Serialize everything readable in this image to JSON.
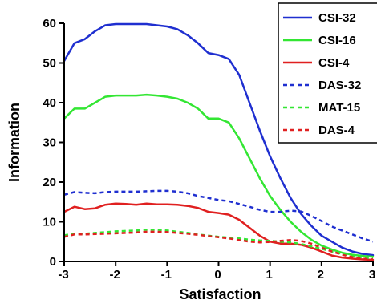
{
  "chart_data": {
    "type": "line",
    "title": "",
    "xlabel": "Satisfaction",
    "ylabel": "Information",
    "xlim": [
      -3,
      3
    ],
    "ylim": [
      0,
      60
    ],
    "xticks": [
      "-3",
      "-2",
      "-1",
      "0",
      "1",
      "2",
      "3"
    ],
    "yticks": [
      "0",
      "10",
      "20",
      "30",
      "40",
      "50",
      "60"
    ],
    "grid": false,
    "legend_position": "top-right",
    "series": [
      {
        "name": "CSI-32",
        "color": "#1f2fd0",
        "dash": "solid",
        "points": [
          [
            -3,
            50.5
          ],
          [
            -2.8,
            55
          ],
          [
            -2.6,
            56
          ],
          [
            -2.4,
            58
          ],
          [
            -2.2,
            59.5
          ],
          [
            -2,
            59.8
          ],
          [
            -1.8,
            59.8
          ],
          [
            -1.6,
            59.8
          ],
          [
            -1.4,
            59.8
          ],
          [
            -1.2,
            59.5
          ],
          [
            -1,
            59.2
          ],
          [
            -0.8,
            58.5
          ],
          [
            -0.6,
            57
          ],
          [
            -0.4,
            55
          ],
          [
            -0.2,
            52.5
          ],
          [
            0,
            52
          ],
          [
            0.2,
            51
          ],
          [
            0.4,
            47
          ],
          [
            0.6,
            40
          ],
          [
            0.8,
            33
          ],
          [
            1,
            26.5
          ],
          [
            1.2,
            21
          ],
          [
            1.4,
            16
          ],
          [
            1.6,
            12
          ],
          [
            1.8,
            9
          ],
          [
            2,
            6.5
          ],
          [
            2.2,
            5
          ],
          [
            2.4,
            3.5
          ],
          [
            2.6,
            2.5
          ],
          [
            2.8,
            1.9
          ],
          [
            3,
            1.6
          ]
        ]
      },
      {
        "name": "CSI-16",
        "color": "#33e633",
        "dash": "solid",
        "points": [
          [
            -3,
            36
          ],
          [
            -2.8,
            38.5
          ],
          [
            -2.6,
            38.5
          ],
          [
            -2.4,
            40
          ],
          [
            -2.2,
            41.5
          ],
          [
            -2,
            41.8
          ],
          [
            -1.8,
            41.8
          ],
          [
            -1.6,
            41.8
          ],
          [
            -1.4,
            42
          ],
          [
            -1.2,
            41.8
          ],
          [
            -1,
            41.5
          ],
          [
            -0.8,
            41
          ],
          [
            -0.6,
            40
          ],
          [
            -0.4,
            38.5
          ],
          [
            -0.2,
            36
          ],
          [
            0,
            36
          ],
          [
            0.2,
            35
          ],
          [
            0.4,
            31
          ],
          [
            0.6,
            26
          ],
          [
            0.8,
            21
          ],
          [
            1,
            16.5
          ],
          [
            1.2,
            13
          ],
          [
            1.4,
            10
          ],
          [
            1.6,
            7.5
          ],
          [
            1.8,
            5.5
          ],
          [
            2,
            4
          ],
          [
            2.2,
            3
          ],
          [
            2.4,
            2.2
          ],
          [
            2.6,
            1.7
          ],
          [
            2.8,
            1.4
          ],
          [
            3,
            1.2
          ]
        ]
      },
      {
        "name": "CSI-4",
        "color": "#e02020",
        "dash": "solid",
        "points": [
          [
            -3,
            12.5
          ],
          [
            -2.8,
            13.8
          ],
          [
            -2.6,
            13.2
          ],
          [
            -2.4,
            13.4
          ],
          [
            -2.2,
            14.3
          ],
          [
            -2,
            14.6
          ],
          [
            -1.8,
            14.5
          ],
          [
            -1.6,
            14.3
          ],
          [
            -1.4,
            14.6
          ],
          [
            -1.2,
            14.4
          ],
          [
            -1,
            14.4
          ],
          [
            -0.8,
            14.3
          ],
          [
            -0.6,
            14
          ],
          [
            -0.4,
            13.5
          ],
          [
            -0.2,
            12.5
          ],
          [
            0,
            12.2
          ],
          [
            0.2,
            11.8
          ],
          [
            0.4,
            10.5
          ],
          [
            0.6,
            8.5
          ],
          [
            0.8,
            6.5
          ],
          [
            1,
            5
          ],
          [
            1.2,
            4.5
          ],
          [
            1.4,
            4.5
          ],
          [
            1.6,
            4.2
          ],
          [
            1.8,
            3.5
          ],
          [
            2,
            2.5
          ],
          [
            2.2,
            1.5
          ],
          [
            2.4,
            1
          ],
          [
            2.6,
            0.7
          ],
          [
            2.8,
            0.5
          ],
          [
            3,
            0.4
          ]
        ]
      },
      {
        "name": "DAS-32",
        "color": "#1f2fd0",
        "dash": "dashed",
        "points": [
          [
            -3,
            16.8
          ],
          [
            -2.8,
            17.5
          ],
          [
            -2.6,
            17.3
          ],
          [
            -2.4,
            17.2
          ],
          [
            -2.2,
            17.5
          ],
          [
            -2,
            17.6
          ],
          [
            -1.8,
            17.6
          ],
          [
            -1.6,
            17.6
          ],
          [
            -1.4,
            17.7
          ],
          [
            -1.2,
            17.8
          ],
          [
            -1,
            17.8
          ],
          [
            -0.8,
            17.6
          ],
          [
            -0.6,
            17.2
          ],
          [
            -0.4,
            16.5
          ],
          [
            -0.2,
            16
          ],
          [
            0,
            15.5
          ],
          [
            0.2,
            15.2
          ],
          [
            0.4,
            14.5
          ],
          [
            0.6,
            13.8
          ],
          [
            0.8,
            13
          ],
          [
            1,
            12.5
          ],
          [
            1.2,
            12.5
          ],
          [
            1.4,
            12.8
          ],
          [
            1.6,
            12.6
          ],
          [
            1.8,
            11.5
          ],
          [
            2,
            10.2
          ],
          [
            2.2,
            8.8
          ],
          [
            2.4,
            7.8
          ],
          [
            2.6,
            6.8
          ],
          [
            2.8,
            5.8
          ],
          [
            3,
            5
          ]
        ]
      },
      {
        "name": "MAT-15",
        "color": "#33e633",
        "dash": "dashed",
        "points": [
          [
            -3,
            6.6
          ],
          [
            -2.8,
            7
          ],
          [
            -2.6,
            7
          ],
          [
            -2.4,
            7.2
          ],
          [
            -2.2,
            7.4
          ],
          [
            -2,
            7.6
          ],
          [
            -1.8,
            7.7
          ],
          [
            -1.6,
            7.8
          ],
          [
            -1.4,
            8
          ],
          [
            -1.2,
            8
          ],
          [
            -1,
            7.8
          ],
          [
            -0.8,
            7.5
          ],
          [
            -0.6,
            7.2
          ],
          [
            -0.4,
            6.8
          ],
          [
            -0.2,
            6.5
          ],
          [
            0,
            6.2
          ],
          [
            0.2,
            6
          ],
          [
            0.4,
            5.8
          ],
          [
            0.6,
            5.5
          ],
          [
            0.8,
            5.3
          ],
          [
            1,
            5.2
          ],
          [
            1.2,
            5
          ],
          [
            1.4,
            4.8
          ],
          [
            1.6,
            4.4
          ],
          [
            1.8,
            3.8
          ],
          [
            2,
            3.2
          ],
          [
            2.2,
            2.5
          ],
          [
            2.4,
            1.9
          ],
          [
            2.6,
            1.4
          ],
          [
            2.8,
            1
          ],
          [
            3,
            0.8
          ]
        ]
      },
      {
        "name": "DAS-4",
        "color": "#e02020",
        "dash": "dashed",
        "points": [
          [
            -3,
            6.2
          ],
          [
            -2.8,
            6.8
          ],
          [
            -2.6,
            6.8
          ],
          [
            -2.4,
            6.9
          ],
          [
            -2.2,
            7
          ],
          [
            -2,
            7.1
          ],
          [
            -1.8,
            7.2
          ],
          [
            -1.6,
            7.3
          ],
          [
            -1.4,
            7.5
          ],
          [
            -1.2,
            7.5
          ],
          [
            -1,
            7.4
          ],
          [
            -0.8,
            7.2
          ],
          [
            -0.6,
            7
          ],
          [
            -0.4,
            6.7
          ],
          [
            -0.2,
            6.4
          ],
          [
            0,
            6.1
          ],
          [
            0.2,
            5.8
          ],
          [
            0.4,
            5.4
          ],
          [
            0.6,
            5
          ],
          [
            0.8,
            4.8
          ],
          [
            1,
            4.9
          ],
          [
            1.2,
            5.2
          ],
          [
            1.4,
            5.4
          ],
          [
            1.6,
            5.2
          ],
          [
            1.8,
            4.5
          ],
          [
            2,
            3.5
          ],
          [
            2.2,
            2.5
          ],
          [
            2.4,
            1.7
          ],
          [
            2.6,
            1.1
          ],
          [
            2.8,
            0.7
          ],
          [
            3,
            0.5
          ]
        ]
      }
    ]
  }
}
